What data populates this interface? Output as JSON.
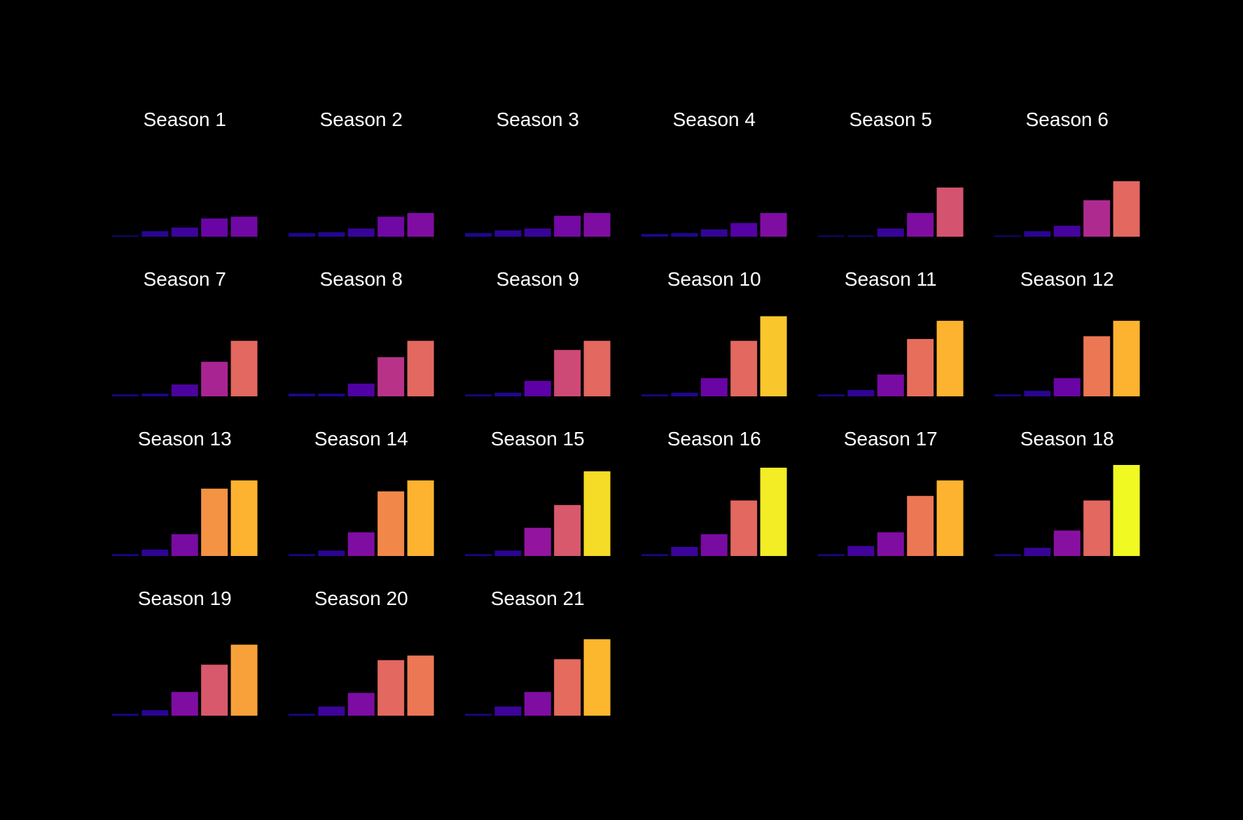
{
  "chart_data": {
    "type": "bar",
    "layout": "small-multiples",
    "grid": false,
    "legend": "none",
    "background": "#000000",
    "title_color": "#ffffff",
    "bars_per_panel": 5,
    "ylim": [
      0,
      100
    ],
    "colormap": "plasma",
    "color_ramp": [
      "#0d0887",
      "#5c01a6",
      "#9c179e",
      "#cc4778",
      "#ed7953",
      "#fdb42f",
      "#f0f921"
    ],
    "panels": [
      {
        "title": "Season 1",
        "values": [
          1,
          6,
          10,
          20,
          22
        ]
      },
      {
        "title": "Season 2",
        "values": [
          4,
          5,
          9,
          22,
          26
        ]
      },
      {
        "title": "Season 3",
        "values": [
          4,
          7,
          9,
          23,
          26
        ]
      },
      {
        "title": "Season 4",
        "values": [
          3,
          4,
          8,
          15,
          26
        ]
      },
      {
        "title": "Season 5",
        "values": [
          1,
          1,
          9,
          26,
          54
        ]
      },
      {
        "title": "Season 6",
        "values": [
          1,
          6,
          12,
          40,
          61
        ]
      },
      {
        "title": "Season 7",
        "values": [
          2,
          3,
          13,
          38,
          61
        ]
      },
      {
        "title": "Season 8",
        "values": [
          3,
          3,
          14,
          43,
          61
        ]
      },
      {
        "title": "Season 9",
        "values": [
          2,
          4,
          17,
          51,
          61
        ]
      },
      {
        "title": "Season 10",
        "values": [
          2,
          4,
          20,
          61,
          88
        ]
      },
      {
        "title": "Season 11",
        "values": [
          2,
          7,
          24,
          63,
          83
        ]
      },
      {
        "title": "Season 12",
        "values": [
          2,
          6,
          20,
          66,
          83
        ]
      },
      {
        "title": "Season 13",
        "values": [
          2,
          7,
          24,
          74,
          83
        ]
      },
      {
        "title": "Season 14",
        "values": [
          2,
          6,
          26,
          71,
          83
        ]
      },
      {
        "title": "Season 15",
        "values": [
          2,
          6,
          31,
          56,
          93
        ]
      },
      {
        "title": "Season 16",
        "values": [
          2,
          10,
          24,
          61,
          97
        ]
      },
      {
        "title": "Season 17",
        "values": [
          2,
          11,
          26,
          66,
          83
        ]
      },
      {
        "title": "Season 18",
        "values": [
          2,
          9,
          28,
          61,
          100
        ]
      },
      {
        "title": "Season 19",
        "values": [
          2,
          6,
          26,
          56,
          78
        ]
      },
      {
        "title": "Season 20",
        "values": [
          2,
          10,
          25,
          61,
          66
        ]
      },
      {
        "title": "Season 21",
        "values": [
          2,
          10,
          26,
          62,
          84
        ]
      }
    ]
  }
}
